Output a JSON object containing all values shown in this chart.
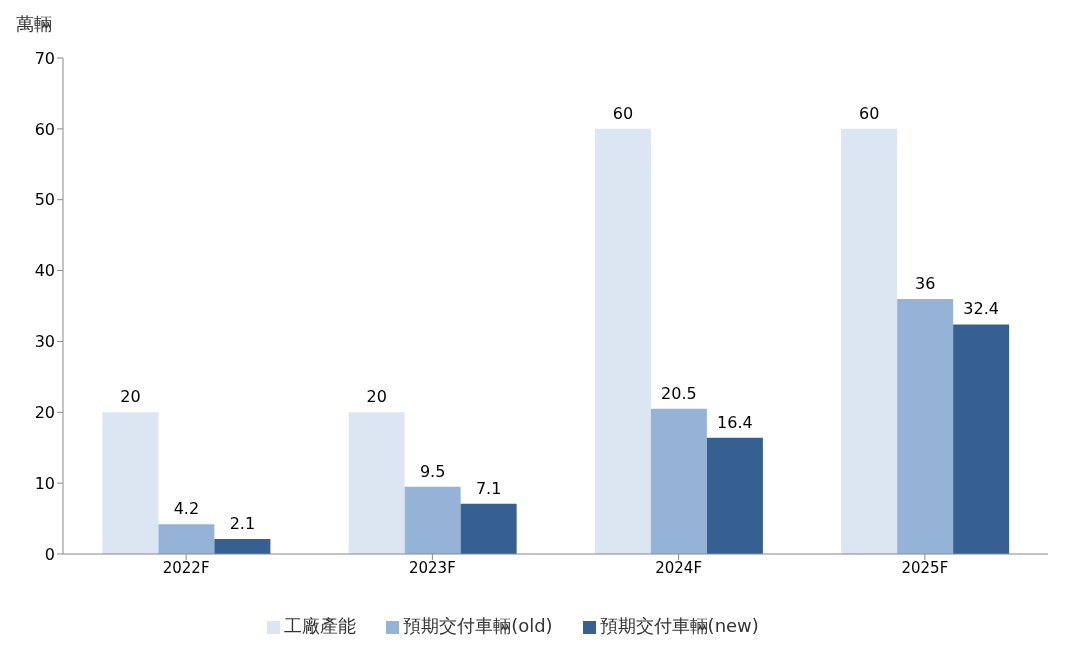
{
  "chart_data": {
    "type": "bar",
    "ylabel": "萬輛",
    "categories": [
      "2022F",
      "2023F",
      "2024F",
      "2025F"
    ],
    "series": [
      {
        "name": "工廠產能",
        "color": "#dce6f2",
        "values": [
          20,
          20,
          60,
          60
        ]
      },
      {
        "name": "預期交付車輛(old)",
        "color": "#95b3d7",
        "values": [
          4.2,
          9.5,
          20.5,
          36
        ]
      },
      {
        "name": "預期交付車輛(new)",
        "color": "#366092",
        "values": [
          2.1,
          7.1,
          16.4,
          32.4
        ]
      }
    ],
    "ylim": [
      0,
      70
    ],
    "yticks": [
      0,
      10,
      20,
      30,
      40,
      50,
      60,
      70
    ],
    "grid": false,
    "legend": "bottom",
    "data_labels": true
  }
}
